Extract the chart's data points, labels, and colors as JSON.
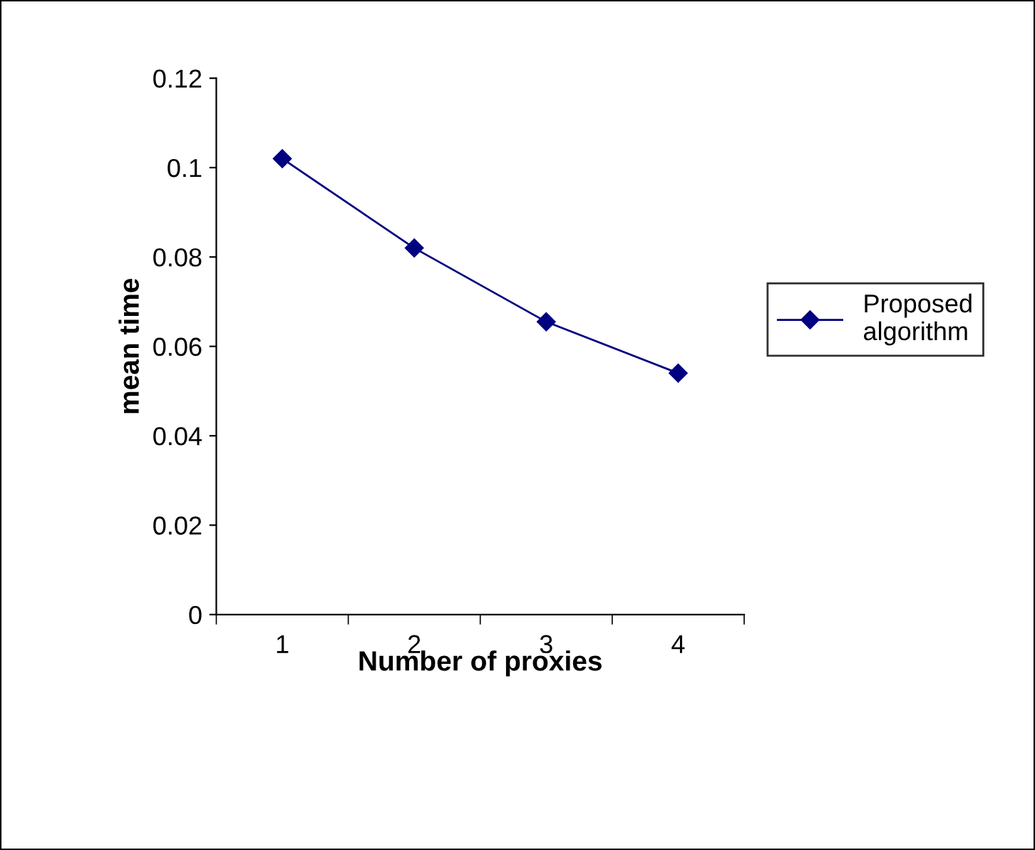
{
  "chart_data": {
    "type": "line",
    "xlabel": "Number of proxies",
    "ylabel": "mean time",
    "categories": [
      "1",
      "2",
      "3",
      "4"
    ],
    "series": [
      {
        "name": "Proposed algorithm",
        "color": "#000080",
        "values": [
          0.102,
          0.082,
          0.0655,
          0.054
        ]
      }
    ],
    "ylim": [
      0,
      0.12
    ],
    "yticks": [
      0,
      0.02,
      0.04,
      0.06,
      0.08,
      0.1,
      0.12
    ],
    "grid": false,
    "legend": "right",
    "marker": "diamond",
    "line_style": "solid"
  }
}
